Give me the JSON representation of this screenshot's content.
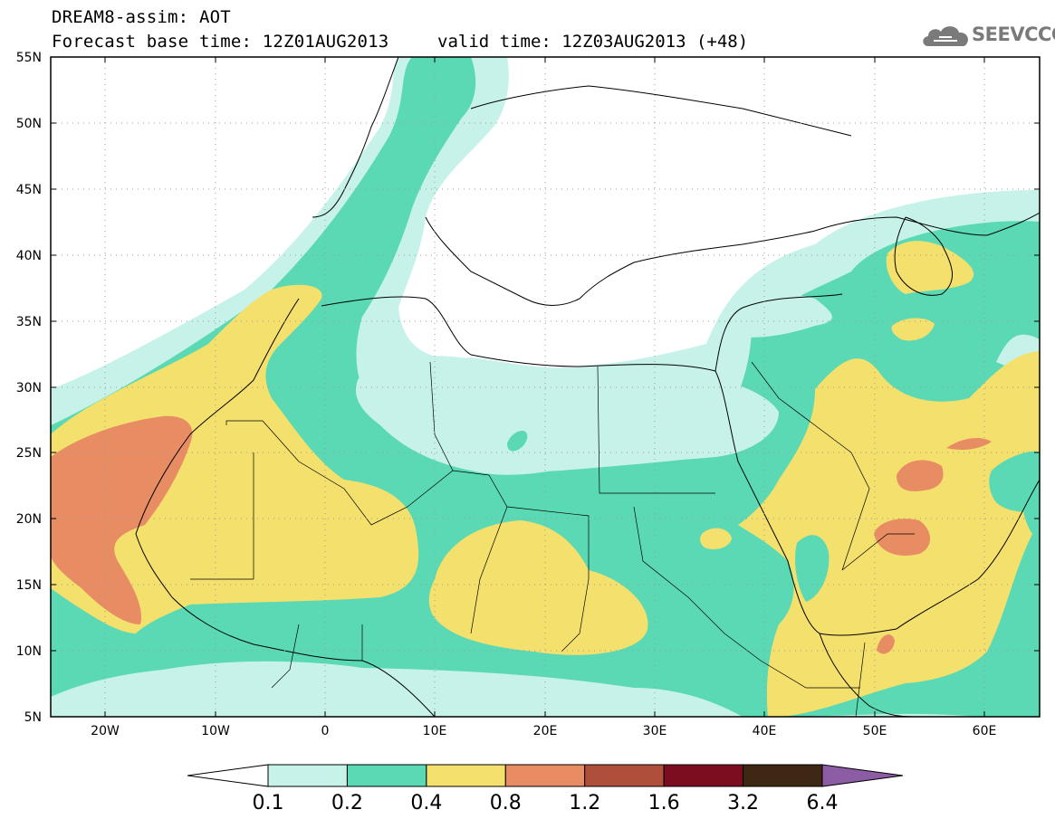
{
  "header": {
    "title": "DREAM8-assim: AOT",
    "forecast_base": "Forecast base time: 12Z01AUG2013",
    "valid": "valid time: 12Z03AUG2013 (+48)"
  },
  "logo": {
    "text": "SEEVCCC",
    "icon": "cloud-icon"
  },
  "map": {
    "projection": "equirectangular",
    "lon_range": [
      -25,
      65
    ],
    "lat_range": [
      5,
      55
    ],
    "lat_ticks": [
      "55N",
      "50N",
      "45N",
      "40N",
      "35N",
      "30N",
      "25N",
      "20N",
      "15N",
      "10N",
      "5N"
    ],
    "lon_ticks": [
      "20W",
      "10W",
      "0",
      "10E",
      "20E",
      "30E",
      "40E",
      "50E",
      "60E"
    ],
    "field": "Aerosol optical thickness (dust)",
    "grid": "dotted"
  },
  "legend": {
    "labels": [
      "0.1",
      "0.2",
      "0.4",
      "0.8",
      "1.2",
      "1.6",
      "3.2",
      "6.4"
    ],
    "colors": [
      "#c6f2ea",
      "#5ad9b4",
      "#f4e06c",
      "#e88c64",
      "#b04e3c",
      "#7c0c20",
      "#3e2814",
      "#8c5ca4"
    ],
    "under_color": "#ffffff"
  },
  "colors": {
    "c1": "#c6f2ea",
    "c2": "#5ad9b4",
    "c3": "#f4e06c",
    "c4": "#e88c64",
    "c5": "#b04e3c"
  }
}
